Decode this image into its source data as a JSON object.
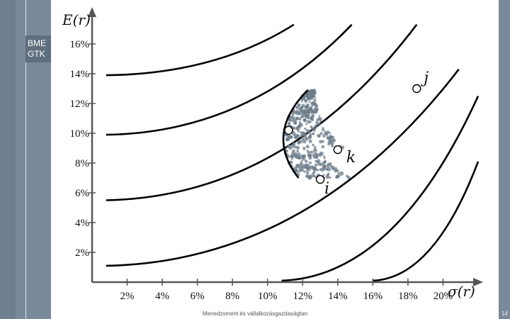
{
  "sidebar": {
    "logo_line1": "BME",
    "logo_line2": "GTK"
  },
  "footer": {
    "text": "Menedzsment és vállalkozásgazdaságtan",
    "page_number": "14"
  },
  "chart_data": {
    "type": "scatter",
    "xlabel": "σ(r)",
    "ylabel": "E(r)",
    "x_ticks": [
      "2%",
      "4%",
      "6%",
      "8%",
      "10%",
      "12%",
      "14%",
      "16%",
      "18%",
      "20%"
    ],
    "y_ticks": [
      "2%",
      "4%",
      "6%",
      "8%",
      "10%",
      "12%",
      "14%",
      "16%"
    ],
    "xlim": [
      0,
      22
    ],
    "ylim": [
      0,
      18
    ],
    "points": [
      {
        "name": "j",
        "x": 18.5,
        "y": 13.0
      },
      {
        "name": "k",
        "x": 14.0,
        "y": 8.9
      },
      {
        "name": "i",
        "x": 13.0,
        "y": 6.9
      },
      {
        "name": "",
        "x": 11.2,
        "y": 10.2
      }
    ],
    "frontier": {
      "vertex_x": 10.9,
      "vertex_y": 9.6,
      "a": 0.0128,
      "y_min": 7.0,
      "y_max": 12.9
    },
    "indifference_curves": [
      {
        "start_x": 0.8,
        "start_y": 13.9,
        "end_x": 11.5,
        "end_y": 17.3
      },
      {
        "start_x": 0.8,
        "start_y": 9.9,
        "end_x": 14.8,
        "end_y": 17.3
      },
      {
        "start_x": 0.8,
        "start_y": 5.5,
        "end_x": 18.5,
        "end_y": 17.3
      },
      {
        "start_x": 0.8,
        "start_y": 1.1,
        "end_x": 20.9,
        "end_y": 14.3
      },
      {
        "start_x": 10.8,
        "start_y": 0.1,
        "end_x": 22.0,
        "end_y": 12.5
      },
      {
        "start_x": 16.0,
        "start_y": 0.1,
        "end_x": 22.0,
        "end_y": 8.1
      }
    ]
  }
}
